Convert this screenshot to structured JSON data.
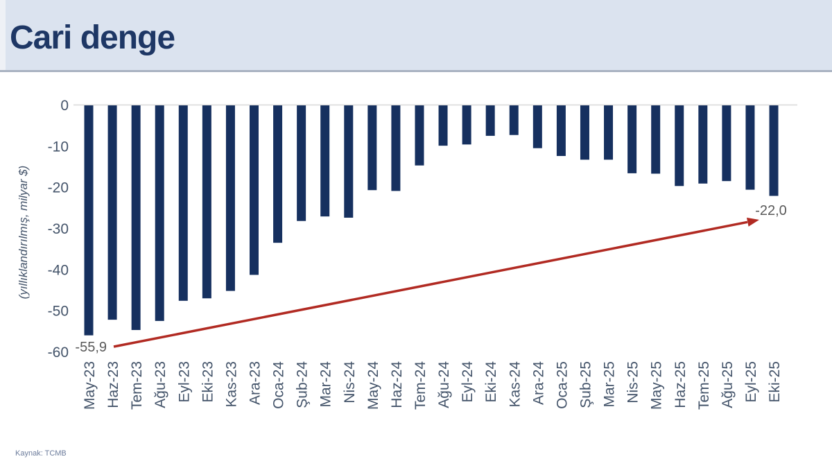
{
  "header": {
    "title": "Cari denge"
  },
  "footer": {
    "source": "Kaynak: TCMB"
  },
  "chart_data": {
    "type": "bar",
    "title": "Cari denge",
    "ylabel": "(yıllıklandırılmış, milyar $)",
    "xlabel": "",
    "ylim": [
      -60,
      0
    ],
    "yticks": [
      0,
      -10,
      -20,
      -30,
      -40,
      -50,
      -60
    ],
    "grid": false,
    "legend": false,
    "categories": [
      "May-23",
      "Haz-23",
      "Tem-23",
      "Ağu-23",
      "Eyl-23",
      "Eki-23",
      "Kas-23",
      "Ara-23",
      "Oca-24",
      "Şub-24",
      "Mar-24",
      "Nis-24",
      "May-24",
      "Haz-24",
      "Tem-24",
      "Ağu-24",
      "Eyl-24",
      "Eki-24",
      "Kas-24",
      "Ara-24",
      "Oca-25",
      "Şub-25",
      "Mar-25",
      "Nis-25",
      "May-25",
      "Haz-25",
      "Tem-25",
      "Ağu-25",
      "Eyl-25",
      "Eki-25"
    ],
    "values": [
      -55.9,
      -52.1,
      -54.6,
      -52.4,
      -47.5,
      -46.9,
      -45.1,
      -41.2,
      -33.4,
      -28.1,
      -27.0,
      -27.3,
      -20.6,
      -20.8,
      -14.6,
      -9.8,
      -9.5,
      -7.4,
      -7.2,
      -10.4,
      -12.3,
      -13.2,
      -13.2,
      -16.5,
      -16.6,
      -19.6,
      -19.0,
      -18.4,
      -20.5,
      -22.0
    ],
    "annotations": {
      "start_label": "-55,9",
      "end_label": "-22,0"
    },
    "trend_arrow": {
      "direction": "up-right",
      "color": "#b12a22"
    },
    "colors": {
      "bar": "#16305f",
      "axis_text": "#44546a",
      "axis_line": "#d9d9d9",
      "annotation_text": "#595959",
      "header_bg": "#dbe3ef",
      "title_text": "#1e3765"
    }
  }
}
